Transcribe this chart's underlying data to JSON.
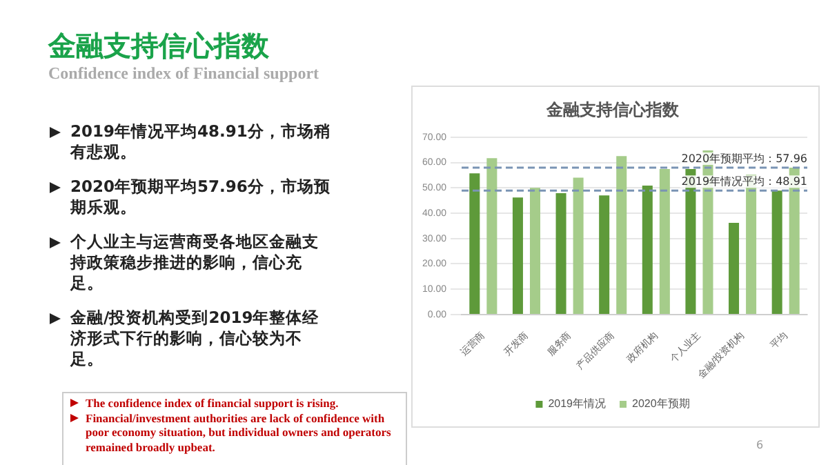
{
  "chart_data": {
    "type": "bar",
    "title": "金融支持信心指数",
    "categories": [
      "运营商",
      "开发商",
      "服务商",
      "产品供应商",
      "政府机构",
      "个人业主",
      "金融/投资机构",
      "平均"
    ],
    "series": [
      {
        "name": "2019年情况",
        "color": "#5e9a3a",
        "values": [
          55.7,
          46.2,
          47.9,
          47.0,
          50.9,
          57.4,
          36.2,
          48.91
        ]
      },
      {
        "name": "2020年预期",
        "color": "#a5cc8a",
        "values": [
          61.7,
          50.0,
          54.0,
          62.5,
          57.4,
          64.8,
          55.2,
          57.96
        ]
      }
    ],
    "ylim": [
      0,
      70
    ],
    "yticks": [
      {
        "value": 0,
        "label": "0.00"
      },
      {
        "value": 10,
        "label": "10.00"
      },
      {
        "value": 20,
        "label": "20.00"
      },
      {
        "value": 30,
        "label": "30.00"
      },
      {
        "value": 40,
        "label": "40.00"
      },
      {
        "value": 50,
        "label": "50.00"
      },
      {
        "value": 60,
        "label": "60.00"
      },
      {
        "value": 70,
        "label": "70.00"
      }
    ],
    "grid": "y",
    "legend": "bottom",
    "ref_lines": [
      {
        "axis": "y",
        "value": 57.96,
        "label": "2020年预期平均：57.96",
        "color": "#7a94b4",
        "line_style": "dashed"
      },
      {
        "axis": "y",
        "value": 48.91,
        "label": "2019年情况平均：48.91",
        "color": "#7a94b4",
        "line_style": "dashed"
      }
    ],
    "annotations": [
      "金融支持信心指数",
      "Confidence index of Financial support",
      "2019年情况平均48.91分，市场稍有悲观。",
      "2020年预期平均57.96分，市场预期乐观。",
      "个人业主与运营商受各地区金融支持政策稳步推进的影响，信心充足。",
      "金融/投资机构受到2019年整体经济形式下行的影响，信心较为不足。",
      "The confidence index of financial support is rising.",
      "Financial/investment authorities are lack of confidence with poor economy situation, but individual owners and operators remained broadly upbeat.",
      "6"
    ]
  }
}
